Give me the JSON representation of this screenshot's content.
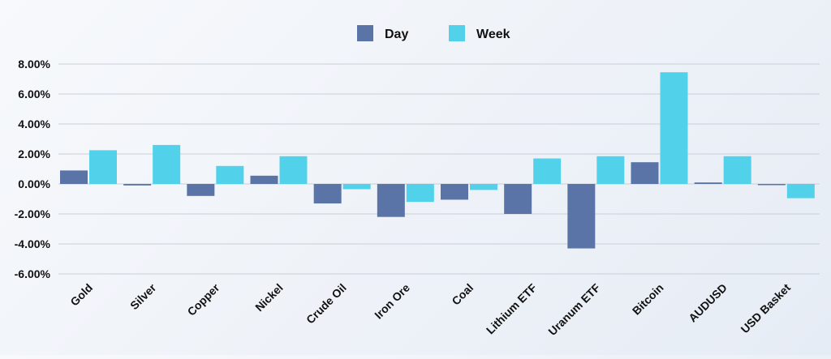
{
  "chart_data": {
    "type": "bar",
    "title": "",
    "xlabel": "",
    "ylabel": "",
    "categories": [
      "Gold",
      "Silver",
      "Copper",
      "Nickel",
      "Crude Oil",
      "Iron Ore",
      "Coal",
      "Lithium ETF",
      "Uranum ETF",
      "Bitcoin",
      "AUDUSD",
      "USD Basket"
    ],
    "series": [
      {
        "name": "Day",
        "color": "#5b74a8",
        "values": [
          0.9,
          -0.1,
          -0.8,
          0.55,
          -1.3,
          -2.2,
          -1.05,
          -2.0,
          -4.3,
          1.45,
          0.1,
          -0.05
        ]
      },
      {
        "name": "Week",
        "color": "#52d2ea",
        "values": [
          2.25,
          2.6,
          1.2,
          1.85,
          -0.35,
          -1.2,
          -0.4,
          1.7,
          1.85,
          7.45,
          1.85,
          -0.95
        ]
      }
    ],
    "ylim": [
      -6,
      8
    ],
    "yticks": [
      "8.00%",
      "6.00%",
      "4.00%",
      "2.00%",
      "0.00%",
      "-2.00%",
      "-4.00%",
      "-6.00%"
    ],
    "ytick_values": [
      8,
      6,
      4,
      2,
      0,
      -2,
      -4,
      -6
    ],
    "grid": true,
    "legend_position": "top-center"
  }
}
